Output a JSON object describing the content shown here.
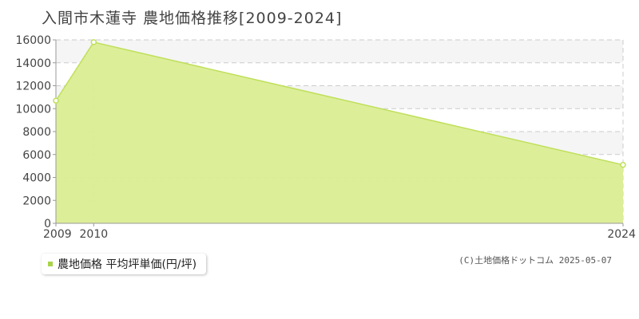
{
  "header": {
    "title": "入間市木蓮寺 農地価格推移[2009-2024]"
  },
  "legend": {
    "label": "農地価格 平均坪単価(円/坪)"
  },
  "footer": {
    "copyright": "(C)土地価格ドットコム 2025-05-07"
  },
  "colors": {
    "fill": "#dbed94",
    "line": "#bfe05a",
    "marker": "#a8d34a",
    "band": "#f5f5f5",
    "grid": "#cccccc",
    "axis": "#999999"
  },
  "chart_data": {
    "type": "area",
    "title": "入間市木蓮寺 農地価格推移[2009-2024]",
    "x": [
      "2009",
      "2010",
      "2024"
    ],
    "series": [
      {
        "name": "農地価格 平均坪単価(円/坪)",
        "values": [
          10700,
          15800,
          5100
        ]
      }
    ],
    "y_ticks": [
      0,
      2000,
      4000,
      6000,
      8000,
      10000,
      12000,
      14000,
      16000
    ],
    "ylim": [
      0,
      16000
    ],
    "grid": true,
    "legend_position": "bottom-left"
  }
}
